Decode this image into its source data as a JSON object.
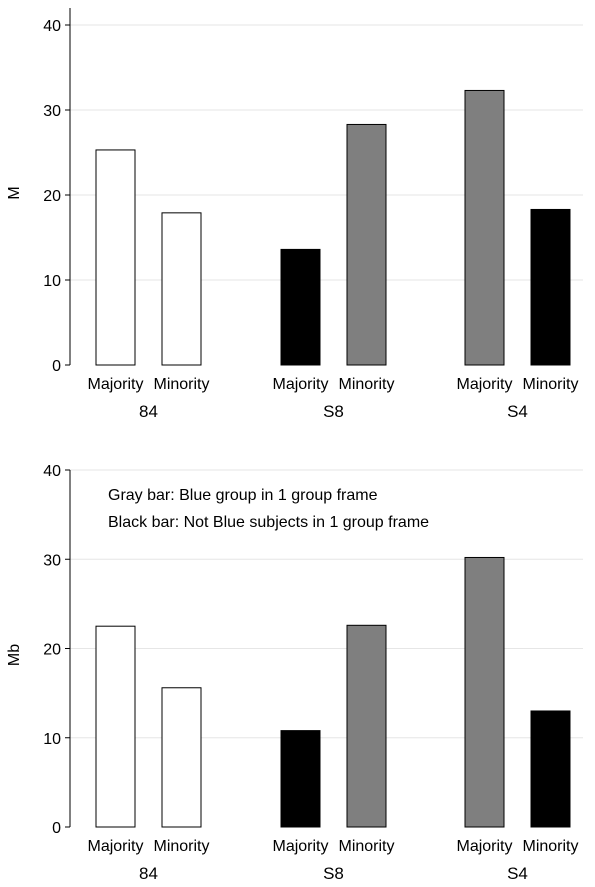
{
  "colors": {
    "white": "#ffffff",
    "gray": "#7f7f7f",
    "black": "#000000"
  },
  "chart_data": [
    {
      "type": "bar",
      "ylabel": "M",
      "ylim": [
        0,
        42
      ],
      "yticks": [
        "0",
        "10",
        "20",
        "30",
        "40"
      ],
      "groups": [
        "84",
        "S8",
        "S4"
      ],
      "categories": [
        "Majority",
        "Minority"
      ],
      "annotations": [],
      "values": [
        [
          25.3,
          17.9
        ],
        [
          13.6,
          28.3
        ],
        [
          32.3,
          18.3
        ]
      ],
      "fills": [
        [
          "white",
          "white"
        ],
        [
          "black",
          "gray"
        ],
        [
          "gray",
          "black"
        ]
      ]
    },
    {
      "type": "bar",
      "ylabel": "Mb",
      "ylim": [
        0,
        40
      ],
      "yticks": [
        "0",
        "10",
        "20",
        "30",
        "40"
      ],
      "groups": [
        "84",
        "S8",
        "S4"
      ],
      "categories": [
        "Majority",
        "Minority"
      ],
      "annotations": [
        "Gray bar: Blue group in 1 group frame",
        "Black bar: Not Blue subjects in 1 group frame"
      ],
      "values": [
        [
          22.5,
          15.6
        ],
        [
          10.8,
          22.6
        ],
        [
          30.2,
          13.0
        ]
      ],
      "fills": [
        [
          "white",
          "white"
        ],
        [
          "black",
          "gray"
        ],
        [
          "gray",
          "black"
        ]
      ]
    }
  ]
}
